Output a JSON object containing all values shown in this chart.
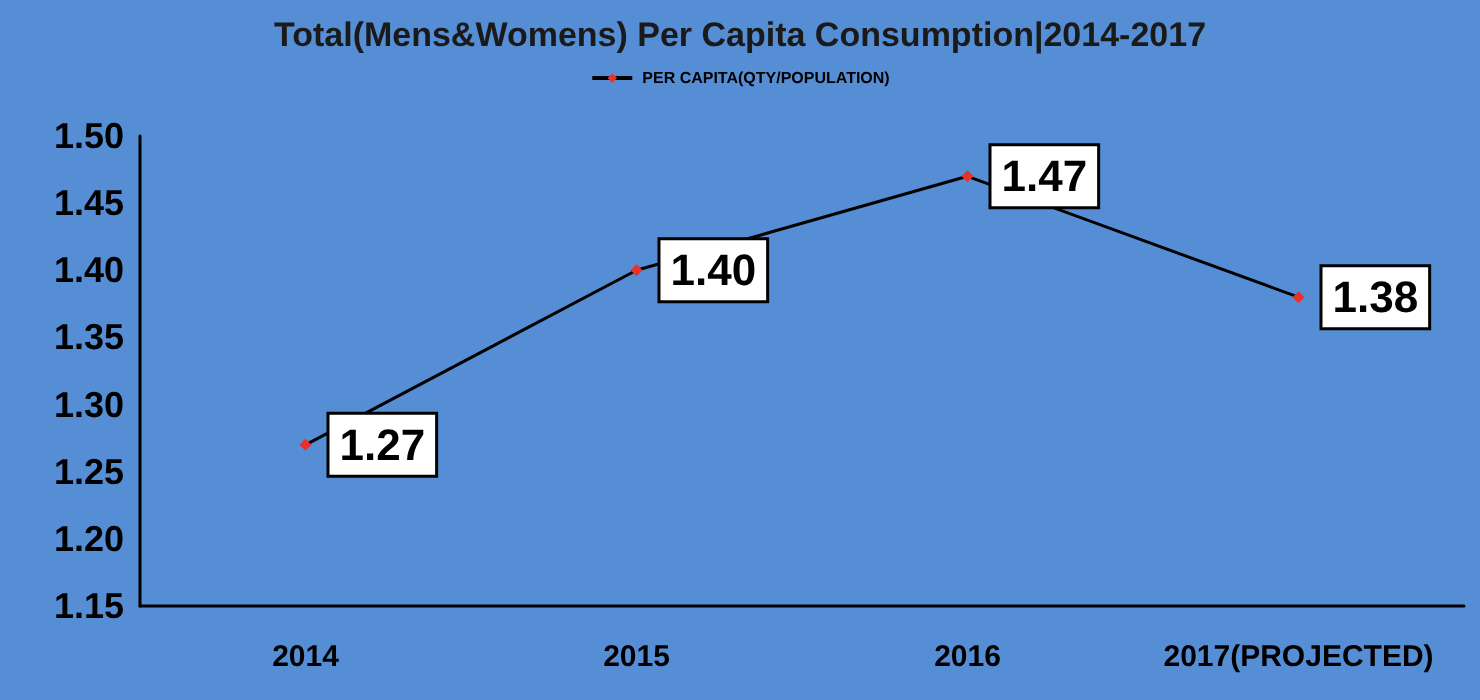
{
  "chart_data": {
    "type": "line",
    "title": "Total(Mens&Womens) Per Capita Consumption|2014-2017",
    "categories": [
      "2014",
      "2015",
      "2016",
      "2017(PROJECTED)"
    ],
    "series": [
      {
        "name": "PER CAPITA(QTY/POPULATION)",
        "color": "#000000",
        "values": [
          1.27,
          1.4,
          1.47,
          1.38
        ],
        "value_labels": [
          "1.27",
          "1.40",
          "1.47",
          "1.38"
        ]
      }
    ],
    "ylim": [
      1.15,
      1.5
    ],
    "yticks": [
      {
        "value": 1.15,
        "label": "1.15"
      },
      {
        "value": 1.2,
        "label": "1.20"
      },
      {
        "value": 1.25,
        "label": "1.25"
      },
      {
        "value": 1.3,
        "label": "1.30"
      },
      {
        "value": 1.35,
        "label": "1.35"
      },
      {
        "value": 1.4,
        "label": "1.40"
      },
      {
        "value": 1.45,
        "label": "1.45"
      },
      {
        "value": 1.5,
        "label": "1.50"
      }
    ],
    "grid": false,
    "legend": "top",
    "marker": "diamond",
    "line_style": "solid"
  }
}
